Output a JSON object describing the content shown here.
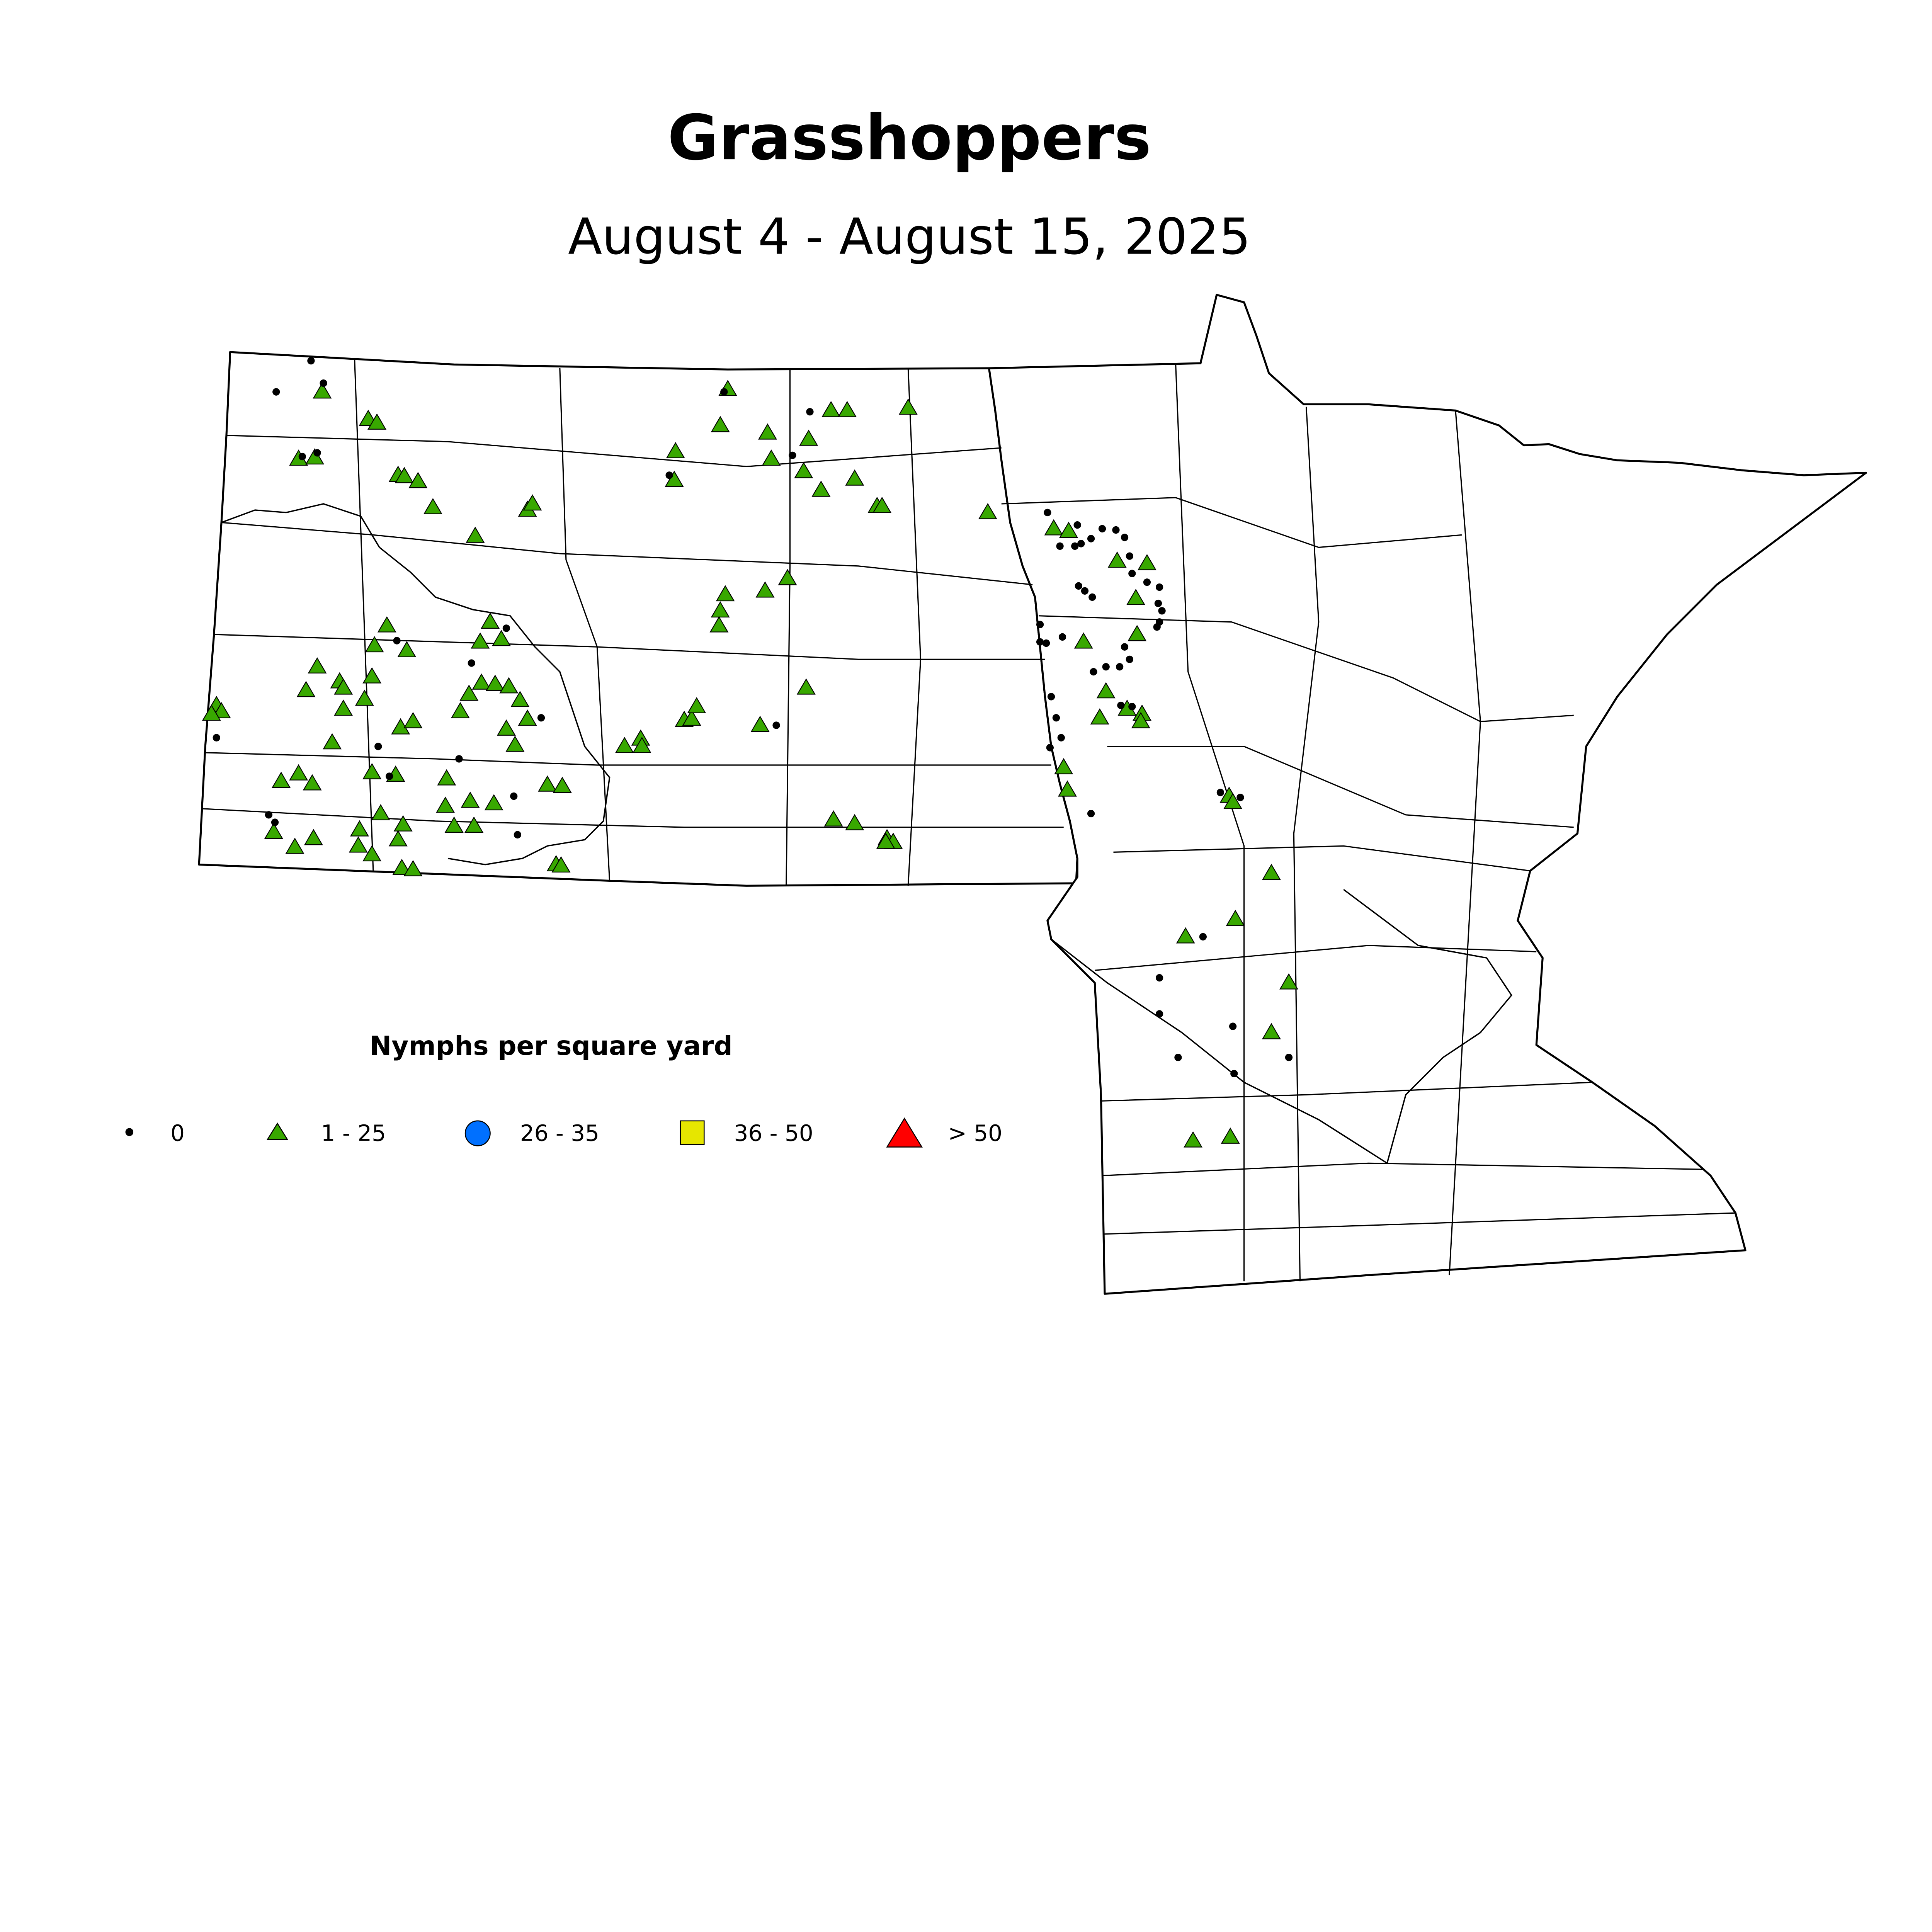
{
  "title": "Grasshoppers",
  "subtitle": "August 4 - August 15, 2025",
  "legend": {
    "title": "Nymphs per square yard",
    "items": [
      {
        "label": "0",
        "symbol": "dot",
        "color": "#000000"
      },
      {
        "label": "1 - 25",
        "symbol": "triangle",
        "color": "#38a800"
      },
      {
        "label": "26 - 35",
        "symbol": "circle",
        "color": "#0070ff"
      },
      {
        "label": "36 - 50",
        "symbol": "square",
        "color": "#e6e600"
      },
      {
        "label": "> 50",
        "symbol": "large-triangle",
        "color": "#ff0000"
      }
    ]
  }
}
